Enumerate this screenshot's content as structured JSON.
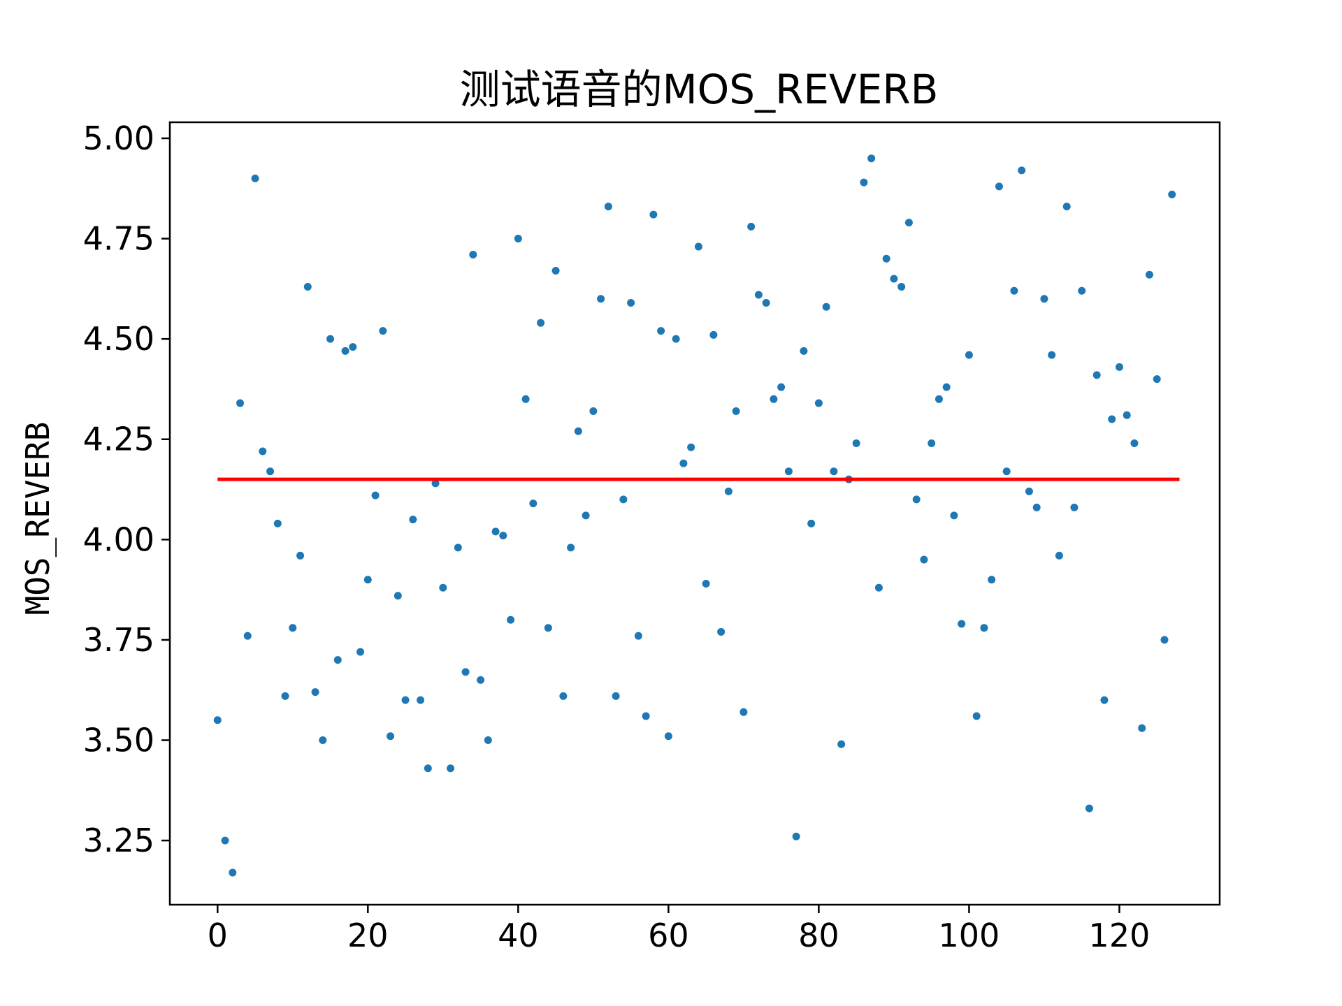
{
  "chart_data": {
    "type": "scatter",
    "title": "测试语音的MOS_REVERB",
    "xlabel": "",
    "ylabel": "MOS_REVERB",
    "xlim": [
      -6.35,
      133.35
    ],
    "ylim": [
      3.09,
      5.04
    ],
    "x_ticks": [
      0,
      20,
      40,
      60,
      80,
      100,
      120
    ],
    "x_tick_labels": [
      "0",
      "20",
      "40",
      "60",
      "80",
      "100",
      "120"
    ],
    "y_ticks": [
      3.25,
      3.5,
      3.75,
      4.0,
      4.25,
      4.5,
      4.75,
      5.0
    ],
    "y_tick_labels": [
      "3.25",
      "3.50",
      "3.75",
      "4.00",
      "4.25",
      "4.50",
      "4.75",
      "5.00"
    ],
    "grid": false,
    "colors": {
      "points": "#1f77b4",
      "mean_line": "#ff0000"
    },
    "series": [
      {
        "values": [
          [
            0,
            3.55
          ],
          [
            1,
            3.25
          ],
          [
            2,
            3.17
          ],
          [
            3,
            4.34
          ],
          [
            4,
            3.76
          ],
          [
            5,
            4.9
          ],
          [
            6,
            4.22
          ],
          [
            7,
            4.17
          ],
          [
            8,
            4.04
          ],
          [
            9,
            3.61
          ],
          [
            10,
            3.78
          ],
          [
            11,
            3.96
          ],
          [
            12,
            4.63
          ],
          [
            13,
            3.62
          ],
          [
            14,
            3.5
          ],
          [
            15,
            4.5
          ],
          [
            16,
            3.7
          ],
          [
            17,
            4.47
          ],
          [
            18,
            4.48
          ],
          [
            19,
            3.72
          ],
          [
            20,
            3.9
          ],
          [
            21,
            4.11
          ],
          [
            22,
            4.52
          ],
          [
            23,
            3.51
          ],
          [
            24,
            3.86
          ],
          [
            25,
            3.6
          ],
          [
            26,
            4.05
          ],
          [
            27,
            3.6
          ],
          [
            28,
            3.43
          ],
          [
            29,
            4.14
          ],
          [
            30,
            3.88
          ],
          [
            31,
            3.43
          ],
          [
            32,
            3.98
          ],
          [
            33,
            3.67
          ],
          [
            34,
            4.71
          ],
          [
            35,
            3.65
          ],
          [
            36,
            3.5
          ],
          [
            37,
            4.02
          ],
          [
            38,
            4.01
          ],
          [
            39,
            3.8
          ],
          [
            40,
            4.75
          ],
          [
            41,
            4.35
          ],
          [
            42,
            4.09
          ],
          [
            43,
            4.54
          ],
          [
            44,
            3.78
          ],
          [
            45,
            4.67
          ],
          [
            46,
            3.61
          ],
          [
            47,
            3.98
          ],
          [
            48,
            4.27
          ],
          [
            49,
            4.06
          ],
          [
            50,
            4.32
          ],
          [
            51,
            4.6
          ],
          [
            52,
            4.83
          ],
          [
            53,
            3.61
          ],
          [
            54,
            4.1
          ],
          [
            55,
            4.59
          ],
          [
            56,
            3.76
          ],
          [
            57,
            3.56
          ],
          [
            58,
            4.81
          ],
          [
            59,
            4.52
          ],
          [
            60,
            3.51
          ],
          [
            61,
            4.5
          ],
          [
            62,
            4.19
          ],
          [
            63,
            4.23
          ],
          [
            64,
            4.73
          ],
          [
            65,
            3.89
          ],
          [
            66,
            4.51
          ],
          [
            67,
            3.77
          ],
          [
            68,
            4.12
          ],
          [
            69,
            4.32
          ],
          [
            70,
            3.57
          ],
          [
            71,
            4.78
          ],
          [
            72,
            4.61
          ],
          [
            73,
            4.59
          ],
          [
            74,
            4.35
          ],
          [
            75,
            4.38
          ],
          [
            76,
            4.17
          ],
          [
            77,
            3.26
          ],
          [
            78,
            4.47
          ],
          [
            79,
            4.04
          ],
          [
            80,
            4.34
          ],
          [
            81,
            4.58
          ],
          [
            82,
            4.17
          ],
          [
            83,
            3.49
          ],
          [
            84,
            4.15
          ],
          [
            85,
            4.24
          ],
          [
            86,
            4.89
          ],
          [
            87,
            4.95
          ],
          [
            88,
            3.88
          ],
          [
            89,
            4.7
          ],
          [
            90,
            4.65
          ],
          [
            91,
            4.63
          ],
          [
            92,
            4.79
          ],
          [
            93,
            4.1
          ],
          [
            94,
            3.95
          ],
          [
            95,
            4.24
          ],
          [
            96,
            4.35
          ],
          [
            97,
            4.38
          ],
          [
            98,
            4.06
          ],
          [
            99,
            3.79
          ],
          [
            100,
            4.46
          ],
          [
            101,
            3.56
          ],
          [
            102,
            3.78
          ],
          [
            103,
            3.9
          ],
          [
            104,
            4.88
          ],
          [
            105,
            4.17
          ],
          [
            106,
            4.62
          ],
          [
            107,
            4.92
          ],
          [
            108,
            4.12
          ],
          [
            109,
            4.08
          ],
          [
            110,
            4.6
          ],
          [
            111,
            4.46
          ],
          [
            112,
            3.96
          ],
          [
            113,
            4.83
          ],
          [
            114,
            4.08
          ],
          [
            115,
            4.62
          ],
          [
            116,
            3.33
          ],
          [
            117,
            4.41
          ],
          [
            118,
            3.6
          ],
          [
            119,
            4.3
          ],
          [
            120,
            4.43
          ],
          [
            121,
            4.31
          ],
          [
            122,
            4.24
          ],
          [
            123,
            3.53
          ],
          [
            124,
            4.66
          ],
          [
            125,
            4.4
          ],
          [
            126,
            3.75
          ],
          [
            127,
            4.86
          ]
        ]
      }
    ],
    "mean_line": {
      "y": 4.15,
      "x_range": [
        0,
        128
      ]
    }
  }
}
